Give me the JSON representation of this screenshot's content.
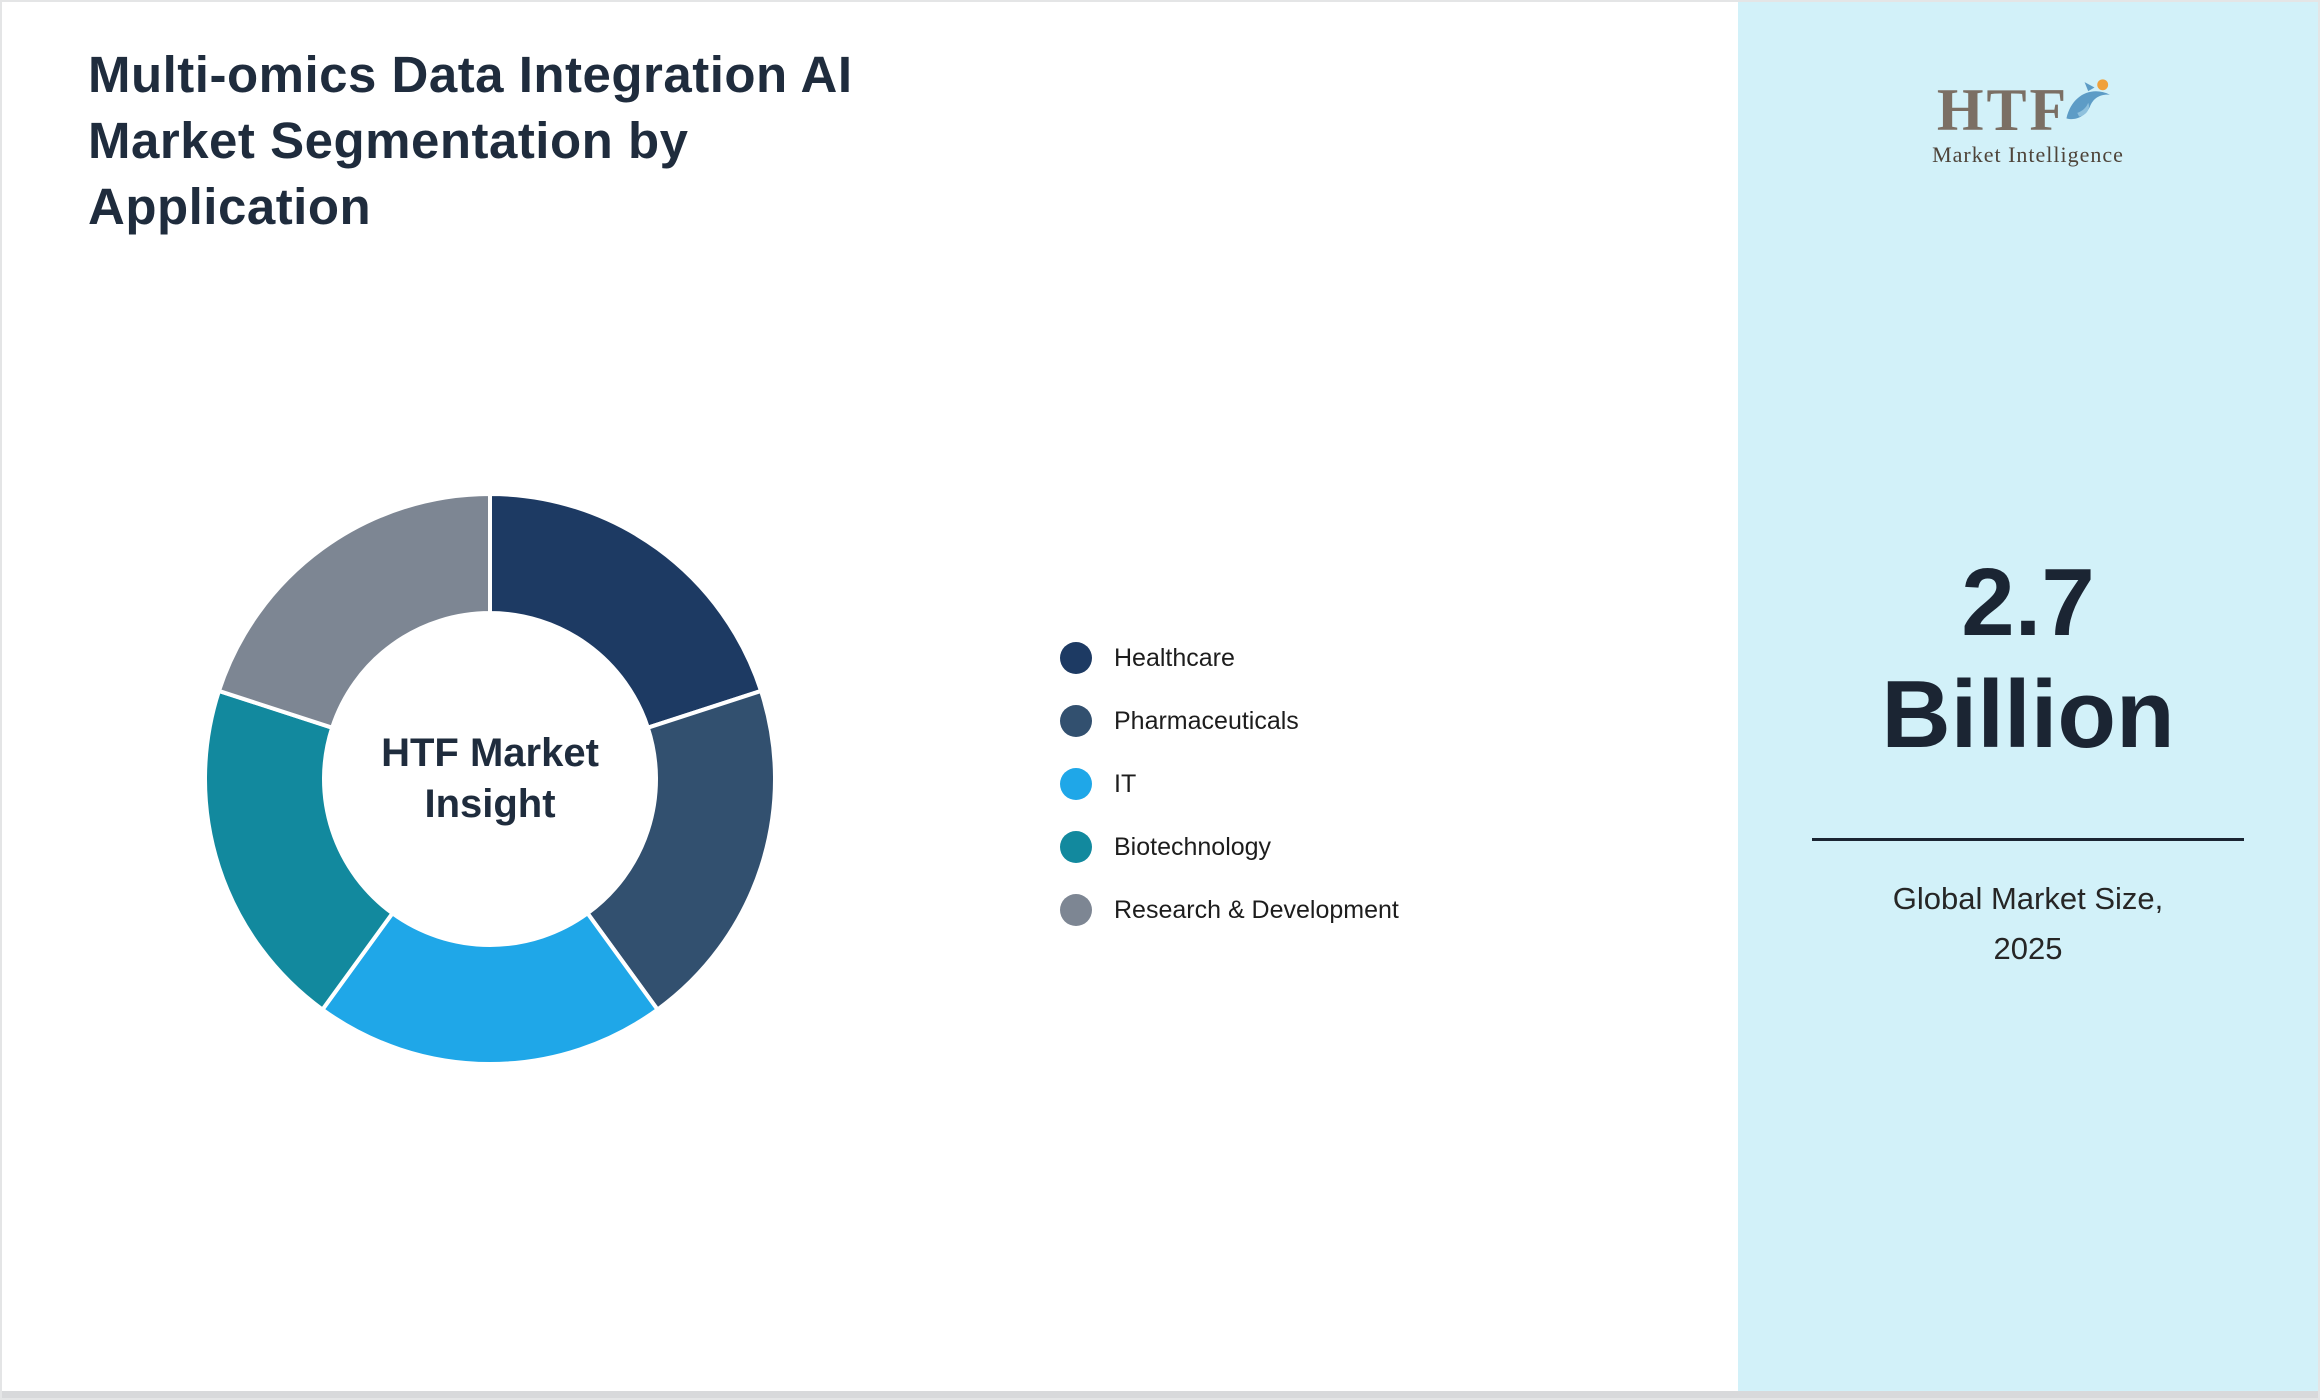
{
  "page": {
    "title": "Multi-omics Data Integration AI Market Segmentation by Application",
    "title_lines": [
      "Multi-omics Data Integration AI",
      "Market Segmentation by",
      "Application"
    ]
  },
  "chart_data": {
    "type": "pie",
    "variant": "donut",
    "title": "Multi-omics Data Integration AI Market Segmentation by Application",
    "center_label": "HTF Market Insight",
    "center_label_lines": [
      "HTF Market",
      "Insight"
    ],
    "categories": [
      "Healthcare",
      "Pharmaceuticals",
      "IT",
      "Biotechnology",
      "Research & Development"
    ],
    "values": [
      20,
      20,
      20,
      20,
      20
    ],
    "colors": [
      "#1d3a63",
      "#32506f",
      "#1fa7e8",
      "#12899e",
      "#7d8693"
    ],
    "legend_position": "right",
    "start_angle_deg": 0,
    "direction": "clockwise",
    "segment_gap_color": "#ffffff"
  },
  "side_panel": {
    "background_color": "#d2f1f9",
    "logo": {
      "text": "HTF",
      "subtext": "Market Intelligence",
      "dolphin_color": "#5d9cc6",
      "ball_color": "#f0a13c"
    },
    "market_size": {
      "value": "2.7",
      "unit": "Billion",
      "caption_line1": "Global Market Size,",
      "caption_line2": "2025"
    }
  }
}
